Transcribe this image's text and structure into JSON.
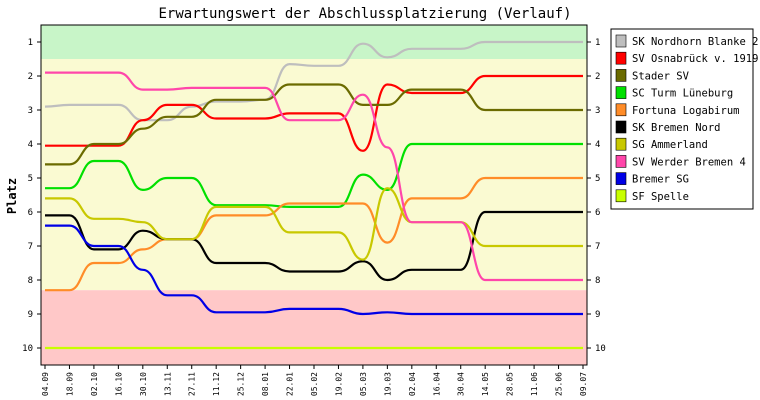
{
  "chart_data": {
    "type": "line",
    "title": "Erwartungswert der Abschlussplatzierung (Verlauf)",
    "ylabel": "Platz",
    "xlabel": "",
    "ylim": [
      10.5,
      0.5
    ],
    "y_ticks": [
      1,
      2,
      3,
      4,
      5,
      6,
      7,
      8,
      9,
      10
    ],
    "x": [
      "04.09",
      "18.09",
      "02.10",
      "16.10",
      "30.10",
      "13.11",
      "27.11",
      "11.12",
      "25.12",
      "08.01",
      "22.01",
      "05.02",
      "19.02",
      "05.03",
      "19.03",
      "02.04",
      "16.04",
      "30.04",
      "14.05",
      "28.05",
      "11.06",
      "25.06",
      "09.07"
    ],
    "legend_position": "right",
    "grid": false,
    "bands": [
      {
        "color": "#c8f5c8",
        "from": 0.5,
        "to": 1.5
      },
      {
        "color": "#fafad2",
        "from": 1.5,
        "to": 8.3
      },
      {
        "color": "#ffc8c8",
        "from": 8.3,
        "to": 10.5
      }
    ],
    "series": [
      {
        "name": "SK Nordhorn Blanke 2",
        "color": "#bebebe",
        "values": [
          2.9,
          2.85,
          2.85,
          2.85,
          3.3,
          3.3,
          2.9,
          2.75,
          2.75,
          2.7,
          1.65,
          1.7,
          1.7,
          1.05,
          1.45,
          1.2,
          1.2,
          1.2,
          1.0,
          1.0,
          1.0,
          1.0,
          1.0
        ]
      },
      {
        "name": "SV Osnabrück v. 1919",
        "color": "#ff0000",
        "values": [
          4.05,
          4.05,
          4.05,
          4.05,
          3.3,
          2.85,
          2.85,
          3.25,
          3.25,
          3.25,
          3.1,
          3.1,
          3.1,
          4.2,
          2.25,
          2.5,
          2.5,
          2.5,
          2.0,
          2.0,
          2.0,
          2.0,
          2.0
        ]
      },
      {
        "name": "Stader SV",
        "color": "#6b6b00",
        "values": [
          4.6,
          4.6,
          4.0,
          4.0,
          3.55,
          3.2,
          3.2,
          2.7,
          2.7,
          2.7,
          2.25,
          2.25,
          2.25,
          2.85,
          2.85,
          2.4,
          2.4,
          2.4,
          3.0,
          3.0,
          3.0,
          3.0,
          3.0
        ]
      },
      {
        "name": "SC Turm Lüneburg",
        "color": "#00e000",
        "values": [
          5.3,
          5.3,
          4.5,
          4.5,
          5.35,
          5.0,
          5.0,
          5.8,
          5.8,
          5.8,
          5.85,
          5.85,
          5.85,
          4.9,
          5.35,
          4.0,
          4.0,
          4.0,
          4.0,
          4.0,
          4.0,
          4.0,
          4.0
        ]
      },
      {
        "name": "Fortuna Logabirum",
        "color": "#ff8c28",
        "values": [
          8.3,
          8.3,
          7.5,
          7.5,
          7.1,
          6.8,
          6.8,
          6.1,
          6.1,
          6.1,
          5.75,
          5.75,
          5.75,
          5.75,
          6.9,
          5.6,
          5.6,
          5.6,
          5.0,
          5.0,
          5.0,
          5.0,
          5.0
        ]
      },
      {
        "name": "SK Bremen Nord",
        "color": "#000000",
        "values": [
          6.1,
          6.1,
          7.1,
          7.1,
          6.55,
          6.8,
          6.8,
          7.5,
          7.5,
          7.5,
          7.75,
          7.75,
          7.75,
          7.45,
          8.0,
          7.7,
          7.7,
          7.7,
          6.0,
          6.0,
          6.0,
          6.0,
          6.0
        ]
      },
      {
        "name": "SG Ammerland",
        "color": "#c8c800",
        "values": [
          5.6,
          5.6,
          6.2,
          6.2,
          6.3,
          6.8,
          6.8,
          5.85,
          5.85,
          5.85,
          6.6,
          6.6,
          6.6,
          7.4,
          5.3,
          6.3,
          6.3,
          6.3,
          7.0,
          7.0,
          7.0,
          7.0,
          7.0
        ]
      },
      {
        "name": "SV Werder Bremen 4",
        "color": "#ff46aa",
        "values": [
          1.9,
          1.9,
          1.9,
          1.9,
          2.4,
          2.4,
          2.35,
          2.35,
          2.35,
          2.35,
          3.3,
          3.3,
          3.3,
          2.55,
          4.1,
          6.3,
          6.3,
          6.3,
          8.0,
          8.0,
          8.0,
          8.0,
          8.0
        ]
      },
      {
        "name": "Bremer SG",
        "color": "#0000e6",
        "values": [
          6.4,
          6.4,
          7.0,
          7.0,
          7.7,
          8.45,
          8.45,
          8.95,
          8.95,
          8.95,
          8.85,
          8.85,
          8.85,
          9.0,
          8.95,
          9.0,
          9.0,
          9.0,
          9.0,
          9.0,
          9.0,
          9.0,
          9.0
        ]
      },
      {
        "name": "SF Spelle",
        "color": "#c8ff00",
        "values": [
          10.0,
          10.0,
          10.0,
          10.0,
          10.0,
          10.0,
          10.0,
          10.0,
          10.0,
          10.0,
          10.0,
          10.0,
          10.0,
          10.0,
          10.0,
          10.0,
          10.0,
          10.0,
          10.0,
          10.0,
          10.0,
          10.0,
          10.0
        ]
      }
    ]
  }
}
